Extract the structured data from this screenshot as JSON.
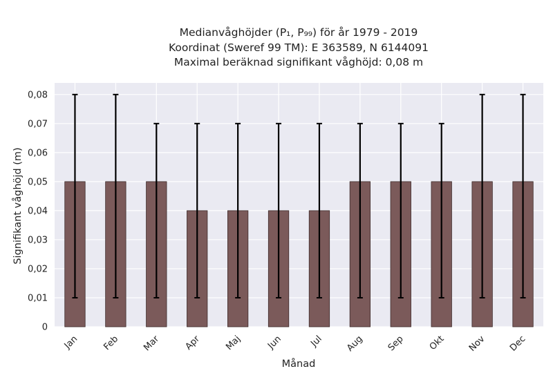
{
  "chart_data": {
    "type": "bar",
    "title_lines": [
      "Medianvåghöjder (P₁, P₉₉) för år 1979 - 2019",
      "Koordinat (Sweref 99 TM): E 363589, N 6144091",
      "Maximal beräknad signifikant våghöjd: 0,08 m"
    ],
    "xlabel": "Månad",
    "ylabel": "Signifikant våghöjd (m)",
    "categories": [
      "Jan",
      "Feb",
      "Mar",
      "Apr",
      "Maj",
      "Jun",
      "Jul",
      "Aug",
      "Sep",
      "Okt",
      "Nov",
      "Dec"
    ],
    "values": [
      0.05,
      0.05,
      0.05,
      0.04,
      0.04,
      0.04,
      0.04,
      0.05,
      0.05,
      0.05,
      0.05,
      0.05
    ],
    "error_low": [
      0.01,
      0.01,
      0.01,
      0.01,
      0.01,
      0.01,
      0.01,
      0.01,
      0.01,
      0.01,
      0.01,
      0.01
    ],
    "error_high": [
      0.08,
      0.08,
      0.07,
      0.07,
      0.07,
      0.07,
      0.07,
      0.07,
      0.07,
      0.07,
      0.08,
      0.08
    ],
    "ylim": [
      0,
      0.084
    ],
    "yticks": [
      0,
      0.01,
      0.02,
      0.03,
      0.04,
      0.05,
      0.06,
      0.07,
      0.08
    ],
    "ytick_labels": [
      "0",
      "0,01",
      "0,02",
      "0,03",
      "0,04",
      "0,05",
      "0,06",
      "0,07",
      "0,08"
    ],
    "grid": true,
    "colors": {
      "plot_background": "#eaeaf2",
      "grid": "#ffffff",
      "bar_fill": "#7b5a5a",
      "bar_edge": "#3d2b2b",
      "error_bar": "#000000"
    }
  }
}
